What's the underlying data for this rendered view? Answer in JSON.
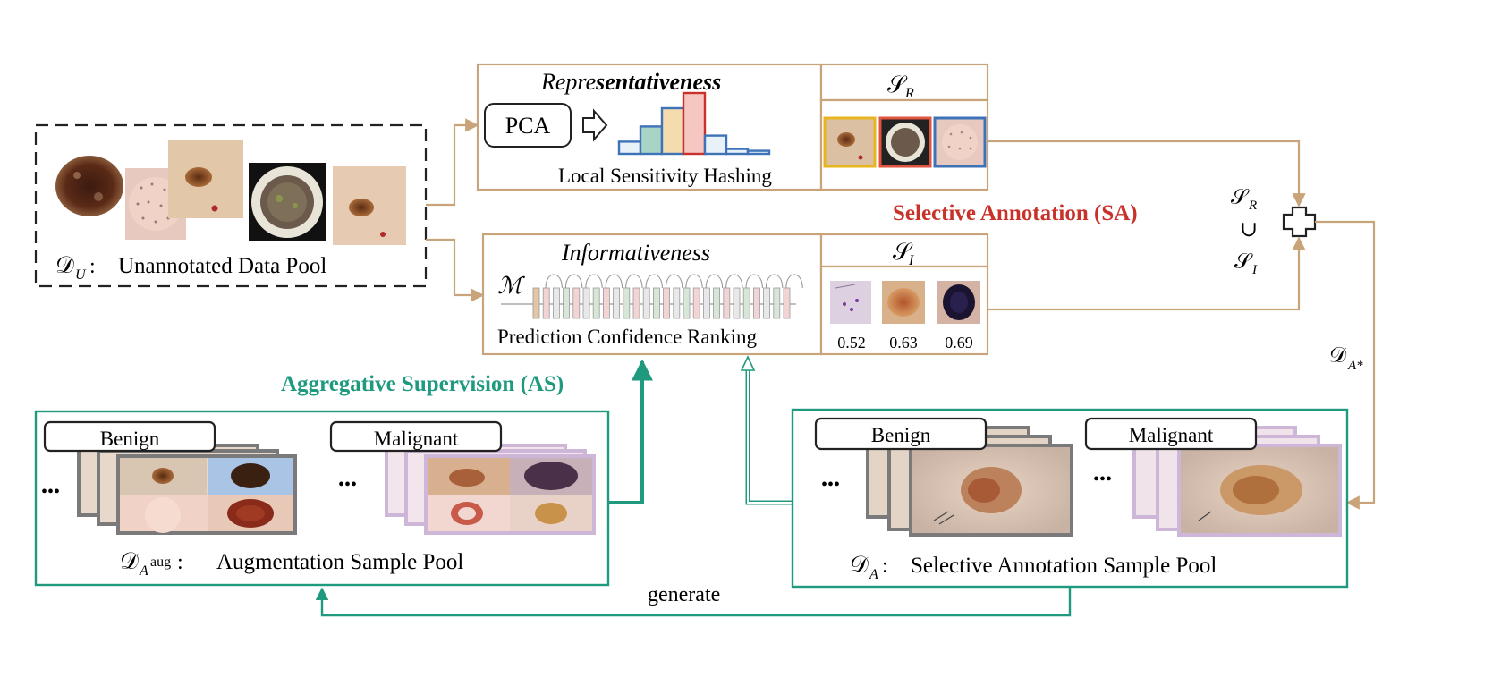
{
  "unannotated_pool": {
    "symbol": "𝒟",
    "subscript": "U",
    "sep": ":",
    "label": "Unannotated Data Pool"
  },
  "representativeness": {
    "title_prefix": "Repre",
    "title_suffix": "sentativeness",
    "pca_label": "PCA",
    "method_label": "Local Sensitivity Hashing",
    "histogram_levels": [
      0.2,
      0.45,
      0.75,
      1.0,
      0.3,
      0.08,
      0.05
    ],
    "set_symbol": "𝒮",
    "set_subscript": "R"
  },
  "informativeness": {
    "title": "Informativeness",
    "model_symbol": "ℳ",
    "method_label": "Prediction Confidence Ranking",
    "set_symbol": "𝒮",
    "set_subscript": "I",
    "scores": [
      "0.52",
      "0.63",
      "0.69"
    ]
  },
  "selective_annotation_label": "Selective Annotation (SA)",
  "union": {
    "top_symbol": "𝒮",
    "top_sub": "R",
    "op": "∪",
    "bottom_symbol": "𝒮",
    "bottom_sub": "I"
  },
  "d_a_star": {
    "symbol": "𝒟",
    "subscript": "A*"
  },
  "aggregative_label": "Aggregative Supervision (AS)",
  "aug_pool": {
    "benign": "Benign",
    "malignant": "Malignant",
    "ellipsis_left": "•••",
    "ellipsis_right": "•••",
    "symbol": "𝒟",
    "subscript": "A",
    "superscript": "aug",
    "sep": ":",
    "label": "Augmentation Sample Pool"
  },
  "sel_pool": {
    "benign": "Benign",
    "malignant": "Malignant",
    "ellipsis_left": "•••",
    "ellipsis_right": "•••",
    "symbol": "𝒟",
    "subscript": "A",
    "sep": ":",
    "label": "Selective Annotation Sample Pool"
  },
  "generate_label": "generate",
  "colors": {
    "tan": "#c9a47a",
    "teal": "#1f9a7f",
    "red": "#c8322a",
    "yellow": "#e7b51f",
    "blue": "#3f73b8",
    "purple_frame": "#cdb6d8",
    "gray_frame": "#7a7a7a"
  }
}
